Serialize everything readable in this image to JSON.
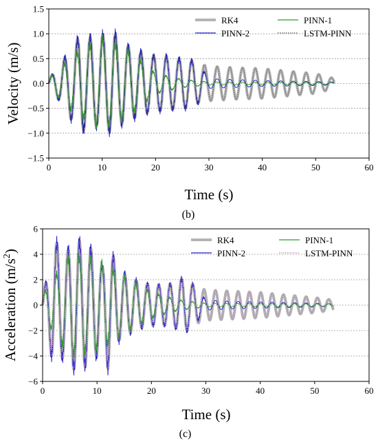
{
  "chart_data": [
    {
      "type": "line",
      "panel_label": "(b)",
      "title": "",
      "xlabel": "Time (s)",
      "ylabel": "Velocity (m/s)",
      "xlim": [
        0,
        60
      ],
      "ylim": [
        -1.5,
        1.5
      ],
      "x_ticks": [
        0,
        10,
        20,
        30,
        40,
        50,
        60
      ],
      "y_ticks": [
        -1.5,
        -1.0,
        -0.5,
        0.0,
        0.5,
        1.0,
        1.5
      ],
      "y_tick_labels": [
        "−1.5",
        "−1.0",
        "−0.5",
        "0.0",
        "0.5",
        "1.0",
        "1.5"
      ],
      "grid": true,
      "legend": "top-right",
      "series": [
        {
          "name": "RK4",
          "color": "#b4b4b4",
          "style": "thick-solid",
          "x": [
            0,
            2,
            4,
            5,
            6,
            7,
            8,
            9,
            10,
            11,
            12,
            13,
            14,
            15,
            16,
            17,
            18,
            20,
            22,
            24,
            26,
            28,
            30,
            35,
            40,
            45,
            50,
            53.5
          ],
          "y_envelope": [
            0.1,
            0.35,
            0.7,
            0.8,
            1.05,
            0.85,
            0.95,
            0.85,
            1.0,
            0.9,
            1.12,
            0.85,
            0.8,
            0.75,
            0.7,
            0.65,
            0.6,
            0.55,
            0.55,
            0.5,
            0.5,
            0.4,
            0.35,
            0.32,
            0.3,
            0.25,
            0.2,
            0.1
          ]
        },
        {
          "name": "PINN-1",
          "color": "#2e9a2e",
          "style": "solid",
          "x": [
            0,
            5,
            10,
            15,
            20,
            25,
            30,
            53.5
          ],
          "y_envelope": [
            0.1,
            0.6,
            0.9,
            0.65,
            0.2,
            0.08,
            0.03,
            0.02
          ]
        },
        {
          "name": "PINN-2",
          "color": "#1e1ecc",
          "style": "solid",
          "x": [
            0,
            2,
            4,
            5,
            6,
            7,
            8,
            9,
            10,
            11,
            12,
            13,
            14,
            15,
            16,
            17,
            18,
            20,
            22,
            24,
            26,
            28,
            30,
            35,
            40,
            45,
            50,
            53.5
          ],
          "y_envelope": [
            0.1,
            0.35,
            0.7,
            0.8,
            1.05,
            0.85,
            0.95,
            0.85,
            1.0,
            0.9,
            1.12,
            0.85,
            0.8,
            0.75,
            0.7,
            0.65,
            0.6,
            0.55,
            0.55,
            0.5,
            0.5,
            0.4,
            0.1,
            0.08,
            0.06,
            0.05,
            0.04,
            0.03
          ]
        },
        {
          "name": "LSTM-PINN",
          "color": "#555555",
          "style": "dotted",
          "x": [
            0,
            2,
            4,
            5,
            6,
            7,
            8,
            9,
            10,
            11,
            12,
            13,
            14,
            15,
            16,
            17,
            18,
            20,
            22,
            24,
            26,
            28,
            30,
            35,
            40,
            45,
            50,
            53.5
          ],
          "y_envelope": [
            0.1,
            0.35,
            0.7,
            0.8,
            1.05,
            0.85,
            0.95,
            0.85,
            1.0,
            0.9,
            1.12,
            0.85,
            0.8,
            0.75,
            0.7,
            0.65,
            0.6,
            0.55,
            0.55,
            0.5,
            0.5,
            0.4,
            0.35,
            0.32,
            0.3,
            0.25,
            0.2,
            0.1
          ]
        }
      ]
    },
    {
      "type": "line",
      "panel_label": "(c)",
      "title": "",
      "xlabel": "Time (s)",
      "ylabel": "Acceleration (m/s²)",
      "xlim": [
        0,
        60
      ],
      "ylim": [
        -6,
        6
      ],
      "x_ticks": [
        0,
        10,
        20,
        30,
        40,
        50,
        60
      ],
      "y_ticks": [
        -6,
        -4,
        -2,
        0,
        2,
        4,
        6
      ],
      "y_tick_labels": [
        "−6",
        "−4",
        "−2",
        "0",
        "2",
        "4",
        "6"
      ],
      "grid": true,
      "legend": "top-right",
      "series": [
        {
          "name": "RK4",
          "color": "#b4b4b4",
          "style": "thick-solid",
          "x": [
            0,
            1,
            2,
            3,
            4,
            5,
            6,
            8,
            10,
            11,
            12,
            13,
            14,
            16,
            18,
            20,
            22,
            24,
            26,
            28,
            30,
            35,
            40,
            45,
            50,
            53.5
          ],
          "y_envelope": [
            0.8,
            2.5,
            5.0,
            4.8,
            3.8,
            4.6,
            5.2,
            4.8,
            4.0,
            3.0,
            5.0,
            3.8,
            2.8,
            2.2,
            1.8,
            1.6,
            1.6,
            1.7,
            2.2,
            1.5,
            1.2,
            1.1,
            1.0,
            0.8,
            0.6,
            0.4
          ]
        },
        {
          "name": "PINN-1",
          "color": "#2e9a2e",
          "style": "solid",
          "x": [
            0,
            5,
            10,
            15,
            20,
            25,
            30,
            53.5
          ],
          "y_envelope": [
            0.8,
            4.0,
            3.5,
            2.2,
            1.0,
            0.4,
            0.15,
            0.1
          ]
        },
        {
          "name": "PINN-2",
          "color": "#1e1ecc",
          "style": "solid",
          "x": [
            0,
            1,
            2,
            3,
            4,
            5,
            6,
            8,
            10,
            11,
            12,
            13,
            14,
            16,
            18,
            20,
            22,
            24,
            26,
            28,
            30,
            35,
            40,
            45,
            50,
            53.5
          ],
          "y_envelope": [
            0.8,
            2.5,
            5.0,
            4.8,
            3.8,
            4.6,
            5.2,
            4.8,
            4.0,
            3.0,
            5.0,
            3.8,
            2.8,
            2.2,
            1.8,
            1.6,
            1.6,
            1.7,
            2.2,
            1.5,
            0.4,
            0.3,
            0.25,
            0.2,
            0.15,
            0.1
          ]
        },
        {
          "name": "LSTM-PINN",
          "color": "#c080c0",
          "style": "dotted",
          "x": [
            0,
            1,
            2,
            3,
            4,
            5,
            6,
            8,
            10,
            11,
            12,
            13,
            14,
            16,
            18,
            20,
            22,
            24,
            26,
            28,
            30,
            35,
            40,
            45,
            50,
            53.5
          ],
          "y_envelope": [
            0.8,
            2.5,
            5.0,
            4.8,
            3.8,
            4.6,
            5.2,
            4.8,
            4.0,
            3.0,
            5.0,
            3.8,
            2.8,
            2.2,
            1.8,
            1.6,
            1.6,
            1.7,
            2.2,
            1.5,
            1.2,
            1.1,
            1.0,
            0.8,
            0.6,
            0.4
          ]
        }
      ]
    }
  ]
}
